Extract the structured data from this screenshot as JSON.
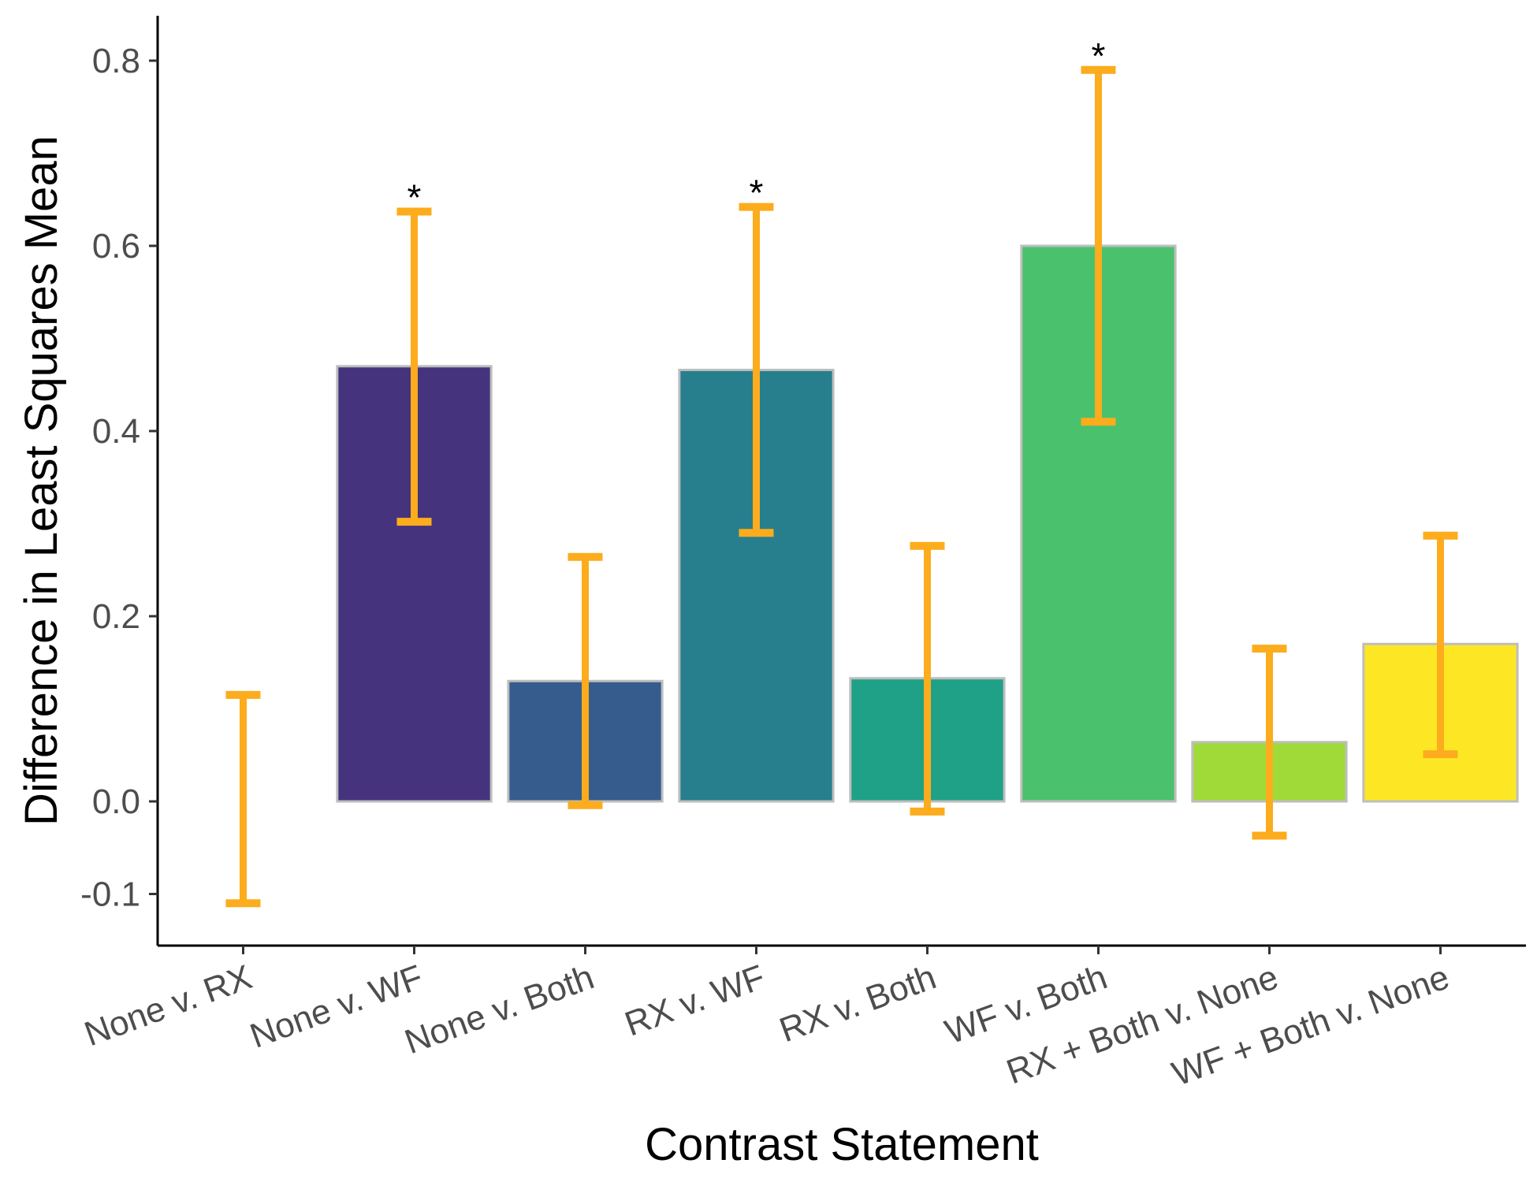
{
  "chart_data": {
    "type": "bar",
    "xlabel": "Contrast Statement",
    "ylabel": "Difference in Least Squares Mean",
    "ylim": [
      -0.165,
      0.845
    ],
    "yticks": [
      -0.1,
      0.0,
      0.2,
      0.4,
      0.6,
      0.8
    ],
    "ytick_labels": [
      "-0.1",
      "0.0",
      "0.2",
      "0.4",
      "0.6",
      "0.8"
    ],
    "grid": false,
    "legend": "none",
    "categories": [
      "None v. RX",
      "None v. WF",
      "None v. Both",
      "RX v. WF",
      "RX v. Both",
      "WF v. Both",
      "RX + Both v. None",
      "WF + Both v. None"
    ],
    "values": [
      0.0,
      0.47,
      0.13,
      0.466,
      0.133,
      0.6,
      0.064,
      0.17
    ],
    "error_lower": [
      -0.11,
      0.302,
      -0.004,
      0.29,
      -0.011,
      0.41,
      -0.037,
      0.051
    ],
    "error_upper": [
      0.115,
      0.637,
      0.264,
      0.642,
      0.276,
      0.79,
      0.165,
      0.287
    ],
    "significance": [
      "",
      "*",
      "",
      "*",
      "",
      "*",
      "",
      ""
    ],
    "colors": [
      "#bebebe",
      "#46337e",
      "#365c8d",
      "#277f8e",
      "#1fa187",
      "#4ac16d",
      "#a0da39",
      "#fde725"
    ],
    "bar_border_color": "#bebebe",
    "error_bar_color": "#fcac1c"
  }
}
